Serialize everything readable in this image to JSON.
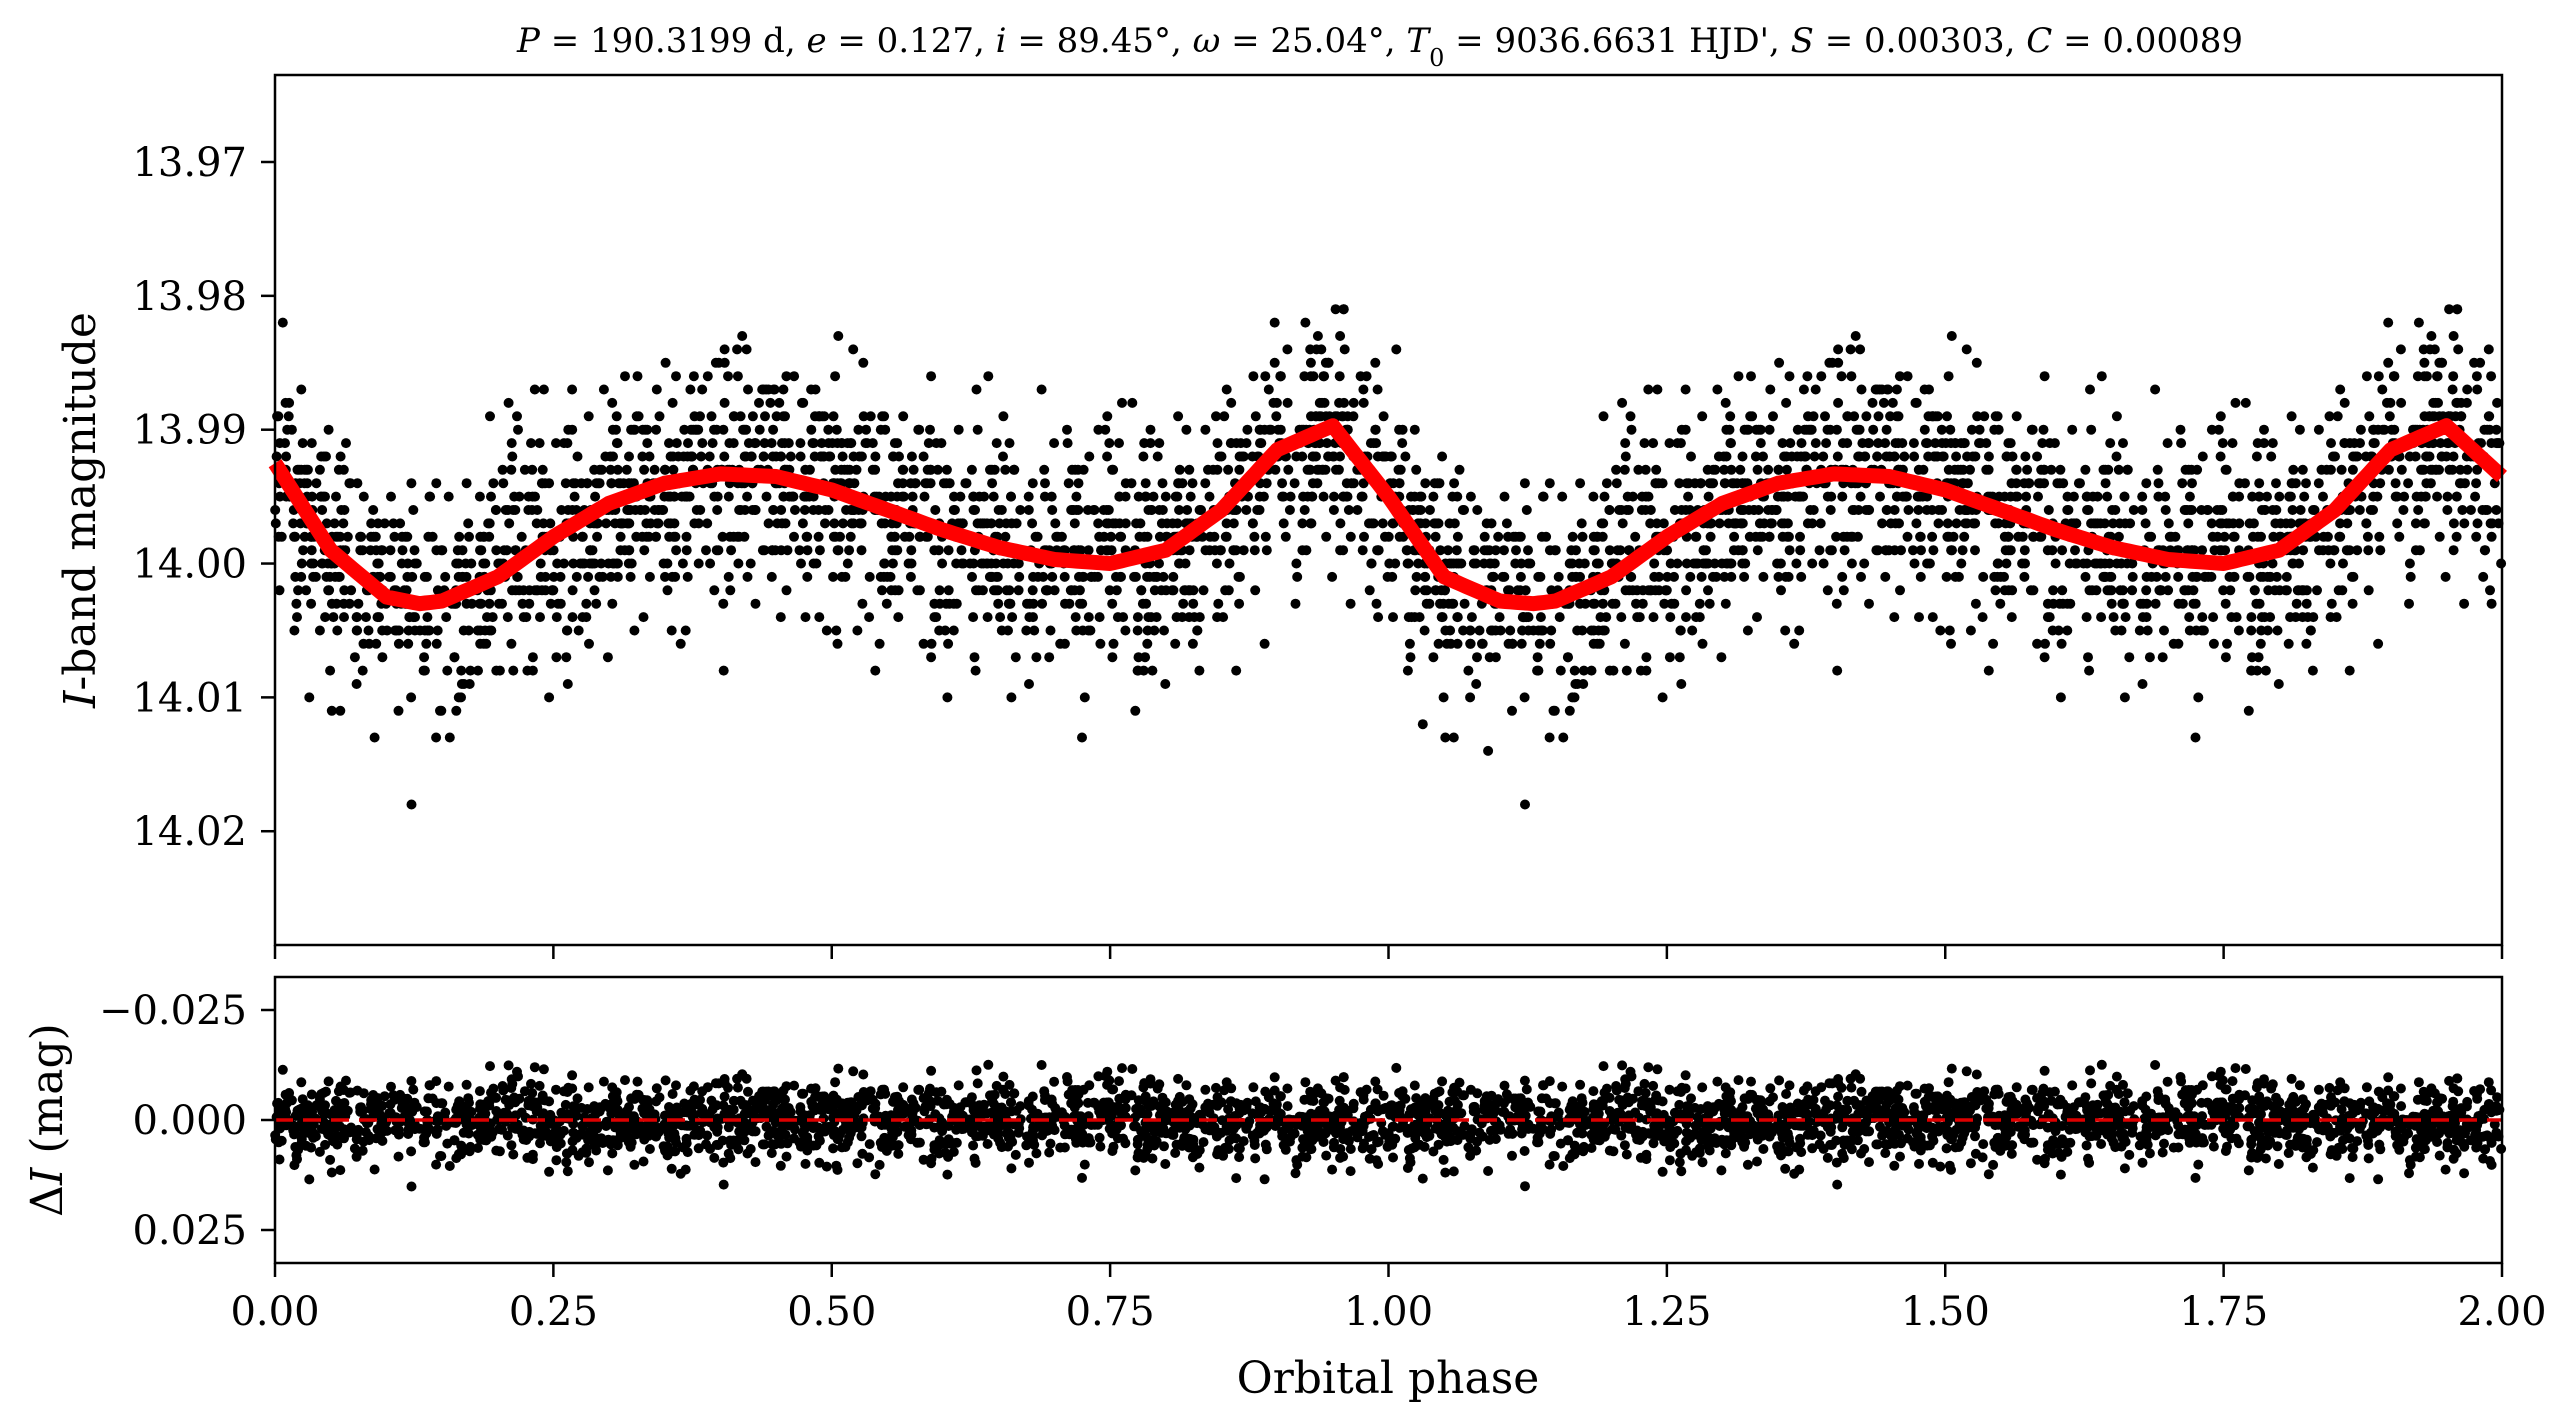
{
  "chart_data": [
    {
      "panel": "top",
      "type": "scatter",
      "title": "P = 190.3199 d, e = 0.127, i = 89.45°, ω = 25.04°, T0 = 9036.6631 HJD', S = 0.00303, C = 0.00089",
      "title_parts": [
        {
          "t": "P",
          "italic": true
        },
        {
          "t": " = 190.3199 d, "
        },
        {
          "t": "e",
          "italic": true
        },
        {
          "t": " = 0.127, "
        },
        {
          "t": "i",
          "italic": true
        },
        {
          "t": " = 89.45°, "
        },
        {
          "t": "ω",
          "italic": true
        },
        {
          "t": " = 25.04°, "
        },
        {
          "t": "T",
          "italic": true
        },
        {
          "t": "0",
          "sub": true
        },
        {
          "t": " = 9036.6631 HJD', "
        },
        {
          "t": "S",
          "italic": true
        },
        {
          "t": " = 0.00303, "
        },
        {
          "t": "C",
          "italic": true
        },
        {
          "t": " = 0.00089"
        }
      ],
      "xlabel": "",
      "ylabel": "I-band magnitude",
      "ylabel_parts": [
        {
          "t": "I",
          "italic": true
        },
        {
          "t": "-band magnitude"
        }
      ],
      "xlim": [
        0.0,
        2.0
      ],
      "ylim": [
        14.0285,
        13.9635
      ],
      "y_inverted": true,
      "yticks": [
        13.97,
        13.98,
        13.99,
        14.0,
        14.01,
        14.02
      ],
      "ytick_labels": [
        "13.97",
        "13.98",
        "13.99",
        "14.00",
        "14.01",
        "14.02"
      ],
      "xticks": [
        0.0,
        0.25,
        0.5,
        0.75,
        1.0,
        1.25,
        1.5,
        1.75,
        2.0
      ],
      "series": [
        {
          "kind": "points",
          "color": "#000000",
          "n_points_per_cycle": 1800,
          "scatter_sigma": 0.0045,
          "magnitude_step": 0.001
        },
        {
          "kind": "model",
          "color": "#ff0000",
          "x": [
            0.0,
            0.05,
            0.1,
            0.13,
            0.15,
            0.2,
            0.25,
            0.3,
            0.35,
            0.4,
            0.45,
            0.5,
            0.55,
            0.6,
            0.65,
            0.7,
            0.75,
            0.8,
            0.85,
            0.9,
            0.95,
            1.0,
            1.05,
            1.1,
            1.13,
            1.15,
            1.2,
            1.25,
            1.3,
            1.35,
            1.4,
            1.45,
            1.5,
            1.55,
            1.6,
            1.65,
            1.7,
            1.75,
            1.8,
            1.85,
            1.9,
            1.95,
            2.0
          ],
          "y": [
            13.9925,
            13.999,
            14.0025,
            14.003,
            14.0028,
            14.001,
            13.998,
            13.9955,
            13.994,
            13.9933,
            13.9935,
            13.9945,
            13.996,
            13.9975,
            13.9988,
            13.9997,
            14.0,
            13.999,
            13.996,
            13.9915,
            13.9897,
            13.995,
            14.001,
            14.0028,
            14.003,
            14.0028,
            14.001,
            13.998,
            13.9955,
            13.994,
            13.9933,
            13.9935,
            13.9945,
            13.996,
            13.9975,
            13.9988,
            13.9997,
            14.0,
            13.999,
            13.996,
            13.9915,
            13.9897,
            13.9935
          ]
        }
      ]
    },
    {
      "panel": "bottom",
      "type": "scatter",
      "xlabel": "Orbital phase",
      "ylabel": "ΔI (mag)",
      "ylabel_parts": [
        {
          "t": "Δ"
        },
        {
          "t": "I",
          "italic": true
        },
        {
          "t": " (mag)"
        }
      ],
      "xlim": [
        0.0,
        2.0
      ],
      "ylim": [
        0.0325,
        -0.0325
      ],
      "y_inverted": true,
      "yticks": [
        -0.025,
        0.0,
        0.025
      ],
      "ytick_labels": [
        "−0.025",
        "0.000",
        "0.025"
      ],
      "xticks": [
        0.0,
        0.25,
        0.5,
        0.75,
        1.0,
        1.25,
        1.5,
        1.75,
        2.0
      ],
      "xtick_labels": [
        "0.00",
        "0.25",
        "0.50",
        "0.75",
        "1.00",
        "1.25",
        "1.50",
        "1.75",
        "2.00"
      ],
      "series": [
        {
          "kind": "residuals",
          "color": "#000000",
          "n_points_per_cycle": 1800,
          "scatter_sigma": 0.0045
        },
        {
          "kind": "zero-line",
          "color": "#dd0000",
          "style": "dashed",
          "y": 0.0
        }
      ]
    }
  ]
}
